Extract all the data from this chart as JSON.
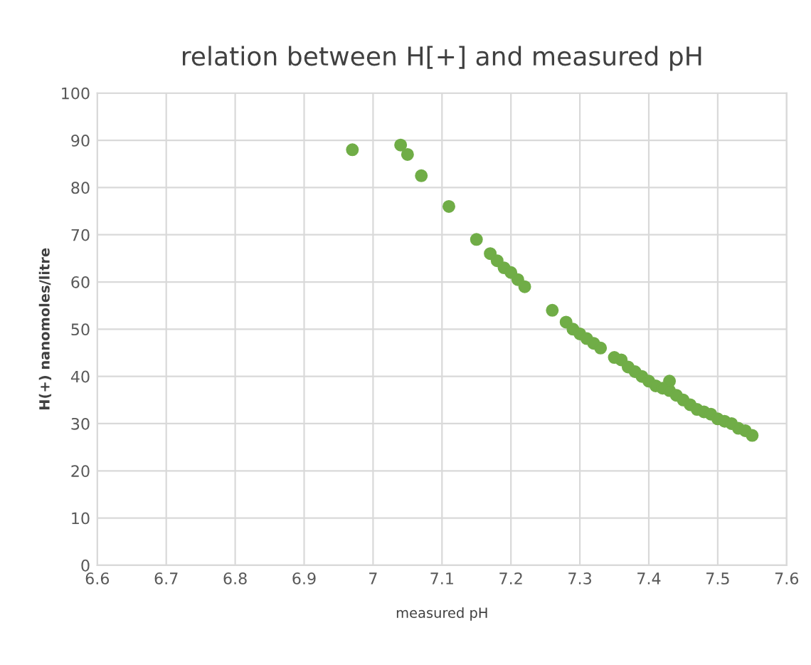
{
  "chart_data": {
    "type": "scatter",
    "title": "relation between H[+] and measured pH",
    "xlabel": "measured pH",
    "ylabel": "H(+) nanomoles/litre",
    "xlim": [
      6.6,
      7.6
    ],
    "xticks": [
      {
        "value": 6.6,
        "label": "6.6"
      },
      {
        "value": 6.7,
        "label": "6.7"
      },
      {
        "value": 6.8,
        "label": "6.8"
      },
      {
        "value": 6.9,
        "label": "6.9"
      },
      {
        "value": 7,
        "label": "7"
      },
      {
        "value": 7.1,
        "label": "7.1"
      },
      {
        "value": 7.2,
        "label": "7.2"
      },
      {
        "value": 7.3,
        "label": "7.3"
      },
      {
        "value": 7.4,
        "label": "7.4"
      },
      {
        "value": 7.5,
        "label": "7.5"
      },
      {
        "value": 7.6,
        "label": "7.6"
      }
    ],
    "ylim": [
      0,
      100
    ],
    "yticks": [
      0,
      10,
      20,
      30,
      40,
      50,
      60,
      70,
      80,
      90,
      100
    ],
    "grid": true,
    "marker": "circle",
    "series": [
      {
        "color": "#70ad47",
        "x": [
          6.97,
          7.04,
          7.05,
          7.07,
          7.11,
          7.15,
          7.17,
          7.18,
          7.19,
          7.2,
          7.21,
          7.22,
          7.26,
          7.28,
          7.29,
          7.3,
          7.31,
          7.32,
          7.33,
          7.35,
          7.36,
          7.37,
          7.38,
          7.39,
          7.4,
          7.41,
          7.42,
          7.43,
          7.43,
          7.44,
          7.45,
          7.46,
          7.47,
          7.48,
          7.49,
          7.5,
          7.51,
          7.52,
          7.53,
          7.54,
          7.55
        ],
        "values": [
          88,
          89,
          87,
          82.5,
          76,
          69,
          66,
          64.5,
          63,
          62,
          60.5,
          59,
          54,
          51.5,
          50,
          49,
          48,
          47,
          46,
          44,
          43.5,
          42,
          41,
          40,
          39,
          38,
          37.5,
          39,
          37,
          36,
          35,
          34,
          33,
          32.5,
          32,
          31,
          30.5,
          30,
          29,
          28.5,
          27.5
        ]
      }
    ]
  }
}
